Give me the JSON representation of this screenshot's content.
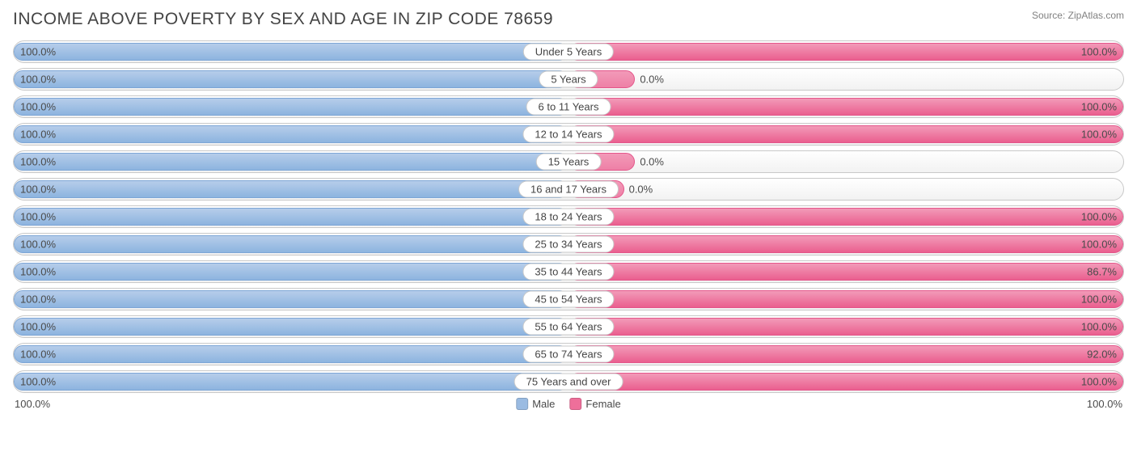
{
  "title": "INCOME ABOVE POVERTY BY SEX AND AGE IN ZIP CODE 78659",
  "source": "Source: ZipAtlas.com",
  "chart": {
    "type": "diverging-bar",
    "male_color": "#9abbe2",
    "female_color": "#ee6f9a",
    "female_short_color": "#f29ab8",
    "row_border_color": "#c9c9c9",
    "row_bg_top": "#ffffff",
    "row_bg_bottom": "#f2f2f2",
    "text_color": "#4a4a4a",
    "title_color": "#444444",
    "font_size_title": 21,
    "font_size_label": 13,
    "rows": [
      {
        "age": "Under 5 Years",
        "male": 100.0,
        "female": 100.0,
        "female_bar_pct": 100.0
      },
      {
        "age": "5 Years",
        "male": 100.0,
        "female": 0.0,
        "female_bar_pct": 12.0
      },
      {
        "age": "6 to 11 Years",
        "male": 100.0,
        "female": 100.0,
        "female_bar_pct": 100.0
      },
      {
        "age": "12 to 14 Years",
        "male": 100.0,
        "female": 100.0,
        "female_bar_pct": 100.0
      },
      {
        "age": "15 Years",
        "male": 100.0,
        "female": 0.0,
        "female_bar_pct": 12.0
      },
      {
        "age": "16 and 17 Years",
        "male": 100.0,
        "female": 0.0,
        "female_bar_pct": 10.0
      },
      {
        "age": "18 to 24 Years",
        "male": 100.0,
        "female": 100.0,
        "female_bar_pct": 100.0
      },
      {
        "age": "25 to 34 Years",
        "male": 100.0,
        "female": 100.0,
        "female_bar_pct": 100.0
      },
      {
        "age": "35 to 44 Years",
        "male": 100.0,
        "female": 86.7,
        "female_bar_pct": 100.0
      },
      {
        "age": "45 to 54 Years",
        "male": 100.0,
        "female": 100.0,
        "female_bar_pct": 100.0
      },
      {
        "age": "55 to 64 Years",
        "male": 100.0,
        "female": 100.0,
        "female_bar_pct": 100.0
      },
      {
        "age": "65 to 74 Years",
        "male": 100.0,
        "female": 92.0,
        "female_bar_pct": 100.0
      },
      {
        "age": "75 Years and over",
        "male": 100.0,
        "female": 100.0,
        "female_bar_pct": 100.0
      }
    ],
    "axis_left": "100.0%",
    "axis_right": "100.0%",
    "legend_male": "Male",
    "legend_female": "Female"
  }
}
